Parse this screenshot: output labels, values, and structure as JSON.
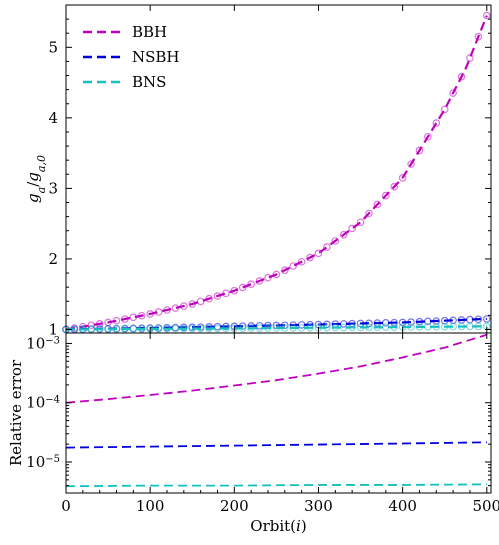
{
  "chart_data": [
    {
      "type": "line",
      "panel": "top",
      "xlabel": "",
      "ylabel": "g_a / g_a,0",
      "ylabel_parts": {
        "main": "g",
        "sub_main": "a",
        "sep": "/",
        "main2": "g",
        "sub2": "a,0"
      },
      "xlim": [
        0,
        505
      ],
      "ylim": [
        0.95,
        5.6
      ],
      "x_ticks": [
        0,
        100,
        200,
        300,
        400,
        500
      ],
      "y_ticks": [
        1,
        2,
        3,
        4,
        5
      ],
      "y_tick_labels": [
        "1",
        "2",
        "3",
        "4",
        "5"
      ],
      "legend_position": "top-left",
      "series": [
        {
          "name": "BBH",
          "color": "#bf00bf",
          "dash": "dashed",
          "markers": "open-circles",
          "x": [
            0,
            50,
            100,
            150,
            200,
            250,
            300,
            350,
            400,
            450,
            475,
            500
          ],
          "y": [
            1.0,
            1.1,
            1.22,
            1.36,
            1.55,
            1.78,
            2.08,
            2.52,
            3.15,
            4.12,
            4.7,
            5.45
          ]
        },
        {
          "name": "NSBH",
          "color": "#0000dd",
          "dash": "dashed",
          "markers": "open-circles",
          "x": [
            0,
            100,
            200,
            300,
            400,
            500
          ],
          "y": [
            1.0,
            1.02,
            1.045,
            1.07,
            1.1,
            1.15
          ]
        },
        {
          "name": "BNS",
          "color": "#17bfbf",
          "dash": "dashed",
          "markers": "open-circles",
          "x": [
            0,
            100,
            200,
            300,
            400,
            500
          ],
          "y": [
            1.0,
            1.008,
            1.016,
            1.025,
            1.034,
            1.045
          ]
        }
      ]
    },
    {
      "type": "line",
      "panel": "bottom",
      "xlabel": "Orbit(i)",
      "xlabel_parts": {
        "text": "Orbit(",
        "italic": "i",
        "close": ")"
      },
      "ylabel": "Relative error",
      "xlim": [
        0,
        505
      ],
      "ylim": [
        3e-06,
        0.0015
      ],
      "yscale": "log",
      "x_ticks": [
        0,
        100,
        200,
        300,
        400,
        500
      ],
      "x_tick_labels": [
        "0",
        "100",
        "200",
        "300",
        "400",
        "500"
      ],
      "y_major_ticks": [
        1e-05,
        0.0001,
        0.001
      ],
      "y_tick_labels": [
        {
          "base": "10",
          "exp": "−5"
        },
        {
          "base": "10",
          "exp": "−4"
        },
        {
          "base": "10",
          "exp": "−3"
        }
      ],
      "series": [
        {
          "name": "BBH",
          "color": "#bf00bf",
          "dash": "dashed",
          "x": [
            0,
            50,
            100,
            150,
            200,
            250,
            300,
            350,
            400,
            450,
            500
          ],
          "y": [
            0.0001,
            0.000115,
            0.000135,
            0.00016,
            0.000195,
            0.00024,
            0.00031,
            0.00041,
            0.00058,
            0.00085,
            0.0014
          ]
        },
        {
          "name": "NSBH",
          "color": "#0000dd",
          "dash": "dashed",
          "x": [
            0,
            100,
            200,
            300,
            400,
            500
          ],
          "y": [
            1.75e-05,
            1.82e-05,
            1.89e-05,
            1.97e-05,
            2.05e-05,
            2.15e-05
          ]
        },
        {
          "name": "BNS",
          "color": "#17bfbf",
          "dash": "dashed",
          "x": [
            0,
            100,
            200,
            300,
            400,
            500
          ],
          "y": [
            3.9e-06,
            4e-06,
            4e-06,
            4.1e-06,
            4.1e-06,
            4.2e-06
          ]
        }
      ]
    }
  ]
}
